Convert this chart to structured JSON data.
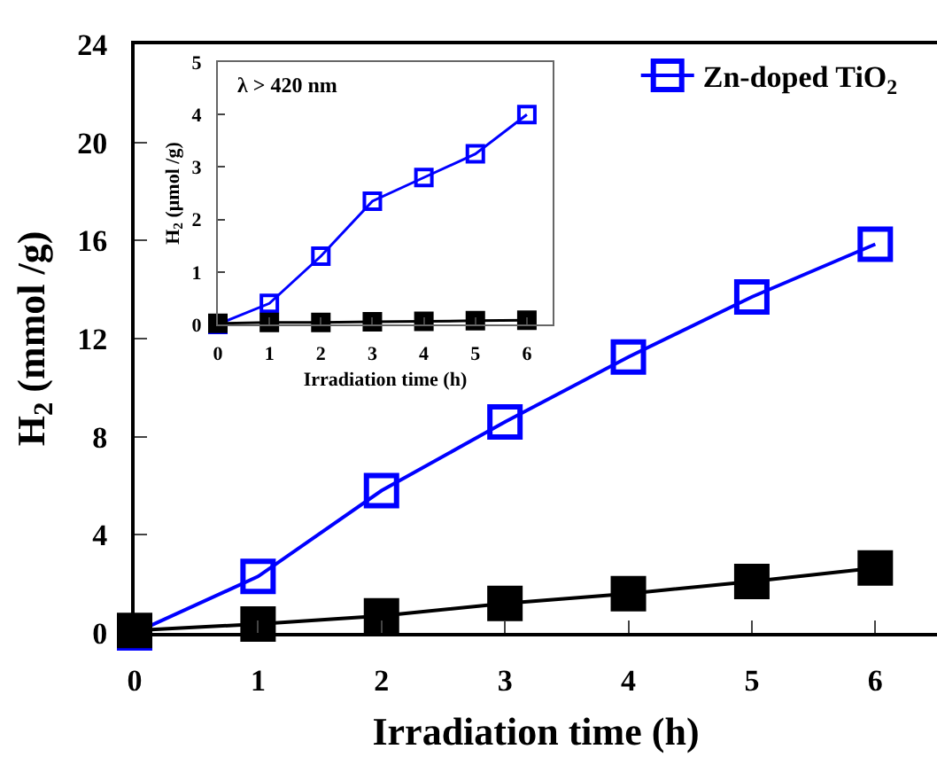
{
  "chart_data": [
    {
      "type": "line",
      "xlabel": "Irradiation time (h)",
      "ylabel": "H$_{2}$ (mmol /g)",
      "x": [
        0,
        1,
        2,
        3,
        4,
        5,
        6
      ],
      "xlim": [
        0,
        6.5
      ],
      "xticks": [
        0,
        1,
        2,
        3,
        4,
        5,
        6
      ],
      "ylim": [
        0,
        24
      ],
      "yticks": [
        0,
        4,
        8,
        12,
        16,
        20,
        24
      ],
      "series": [
        {
          "name": "Zn-doped TiO$_{2}$",
          "color": "#0000ff",
          "marker": "square-open",
          "values": [
            0,
            2.3,
            5.8,
            8.6,
            11.25,
            13.7,
            15.85
          ]
        },
        {
          "color": "#000000",
          "marker": "square",
          "values": [
            0.1,
            0.36,
            0.7,
            1.2,
            1.6,
            2.1,
            2.65
          ]
        }
      ],
      "legend": "top right",
      "grid": false
    },
    {
      "type": "line",
      "xlabel": "Irradiation time (h)",
      "ylabel": "H$_{2}$ (μmol /g)",
      "annotations": [
        "λ > 420 nm"
      ],
      "x": [
        0,
        1,
        2,
        3,
        4,
        5,
        6
      ],
      "xlim": [
        0,
        6.5
      ],
      "xticks": [
        0,
        1,
        2,
        3,
        4,
        5,
        6
      ],
      "ylim": [
        0,
        5
      ],
      "yticks": [
        0,
        1,
        2,
        3,
        4,
        5
      ],
      "series": [
        {
          "color": "#0000ff",
          "marker": "square-open",
          "values": [
            0,
            0.4,
            1.3,
            2.35,
            2.8,
            3.25,
            4.0
          ]
        },
        {
          "color": "#000000",
          "marker": "square",
          "values": [
            0.02,
            0.04,
            0.04,
            0.05,
            0.06,
            0.07,
            0.08
          ]
        }
      ],
      "legend": false,
      "grid": false
    }
  ]
}
